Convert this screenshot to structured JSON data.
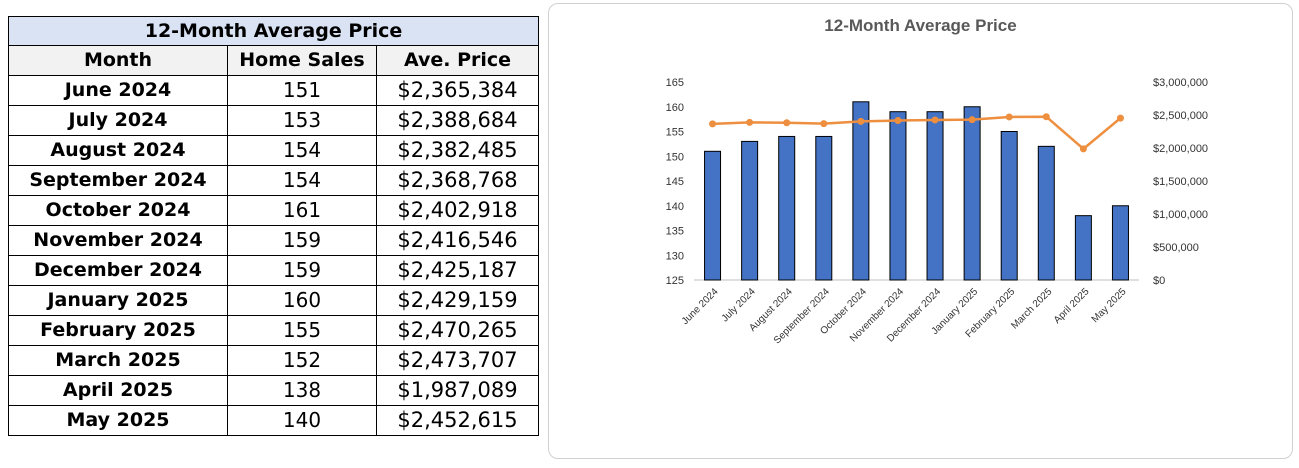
{
  "table": {
    "title": "12-Month Average Price",
    "headers": [
      "Month",
      "Home Sales",
      "Ave. Price"
    ],
    "rows": [
      {
        "month": "June 2024",
        "sales": "151",
        "price": "$2,365,384"
      },
      {
        "month": "July 2024",
        "sales": "153",
        "price": "$2,388,684"
      },
      {
        "month": "August 2024",
        "sales": "154",
        "price": "$2,382,485"
      },
      {
        "month": "September 2024",
        "sales": "154",
        "price": "$2,368,768"
      },
      {
        "month": "October 2024",
        "sales": "161",
        "price": "$2,402,918"
      },
      {
        "month": "November 2024",
        "sales": "159",
        "price": "$2,416,546"
      },
      {
        "month": "December 2024",
        "sales": "159",
        "price": "$2,425,187"
      },
      {
        "month": "January 2025",
        "sales": "160",
        "price": "$2,429,159"
      },
      {
        "month": "February 2025",
        "sales": "155",
        "price": "$2,470,265"
      },
      {
        "month": "March 2025",
        "sales": "152",
        "price": "$2,473,707"
      },
      {
        "month": "April 2025",
        "sales": "138",
        "price": "$1,987,089"
      },
      {
        "month": "May 2025",
        "sales": "140",
        "price": "$2,452,615"
      }
    ]
  },
  "chart_data": {
    "type": "bar",
    "title": "12-Month Average Price",
    "categories": [
      "June 2024",
      "July 2024",
      "August 2024",
      "September 2024",
      "October 2024",
      "November 2024",
      "December 2024",
      "January 2025",
      "February 2025",
      "March 2025",
      "April 2025",
      "May 2025"
    ],
    "series": [
      {
        "type": "bar",
        "axis": "left",
        "color": "#4472c4",
        "values": [
          151,
          153,
          154,
          154,
          161,
          159,
          159,
          160,
          155,
          152,
          138,
          140
        ]
      },
      {
        "type": "line",
        "axis": "right",
        "color": "#ed8f3f",
        "values": [
          2365384,
          2388684,
          2382485,
          2368768,
          2402918,
          2416546,
          2425187,
          2429159,
          2470265,
          2473707,
          1987089,
          2452615
        ]
      }
    ],
    "ylim_left": [
      125,
      165
    ],
    "yticks_left": [
      "125",
      "130",
      "135",
      "140",
      "145",
      "150",
      "155",
      "160",
      "165"
    ],
    "ylim_right": [
      0,
      3000000
    ],
    "yticks_right": [
      "$0",
      "$500,000",
      "$1,000,000",
      "$1,500,000",
      "$2,000,000",
      "$2,500,000",
      "$3,000,000"
    ],
    "grid": false,
    "legend": "none"
  }
}
